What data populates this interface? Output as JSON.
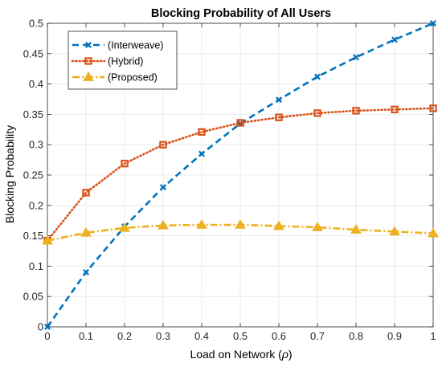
{
  "chart_data": {
    "type": "line",
    "title": "Blocking Probability of All Users",
    "xlabel": "Load on Network (",
    "xlabel_symbol": "ρ",
    "xlabel_close": ")",
    "ylabel": "Blocking Probability",
    "xlim": [
      0,
      1
    ],
    "ylim": [
      0,
      0.5
    ],
    "xticks": [
      0,
      0.1,
      0.2,
      0.3,
      0.4,
      0.5,
      0.6,
      0.7,
      0.8,
      0.9,
      1
    ],
    "xtick_labels": [
      "0",
      "0.1",
      "0.2",
      "0.3",
      "0.4",
      "0.5",
      "0.6",
      "0.7",
      "0.8",
      "0.9",
      "1"
    ],
    "yticks": [
      0,
      0.05,
      0.1,
      0.15,
      0.2,
      0.25,
      0.3,
      0.35,
      0.4,
      0.45,
      0.5
    ],
    "ytick_labels": [
      "0",
      "0.05",
      "0.1",
      "0.15",
      "0.2",
      "0.25",
      "0.3",
      "0.35",
      "0.4",
      "0.45",
      "0.5"
    ],
    "grid": true,
    "legend_position": "top-left",
    "x": [
      0,
      0.1,
      0.2,
      0.3,
      0.4,
      0.5,
      0.6,
      0.7,
      0.8,
      0.9,
      1
    ],
    "series": [
      {
        "name": "(Interweave)",
        "color": "#0072BD",
        "line_style": "dashed",
        "marker": "x",
        "values": [
          0.0,
          0.09,
          0.165,
          0.23,
          0.285,
          0.335,
          0.374,
          0.412,
          0.444,
          0.473,
          0.5
        ]
      },
      {
        "name": "(Hybrid)",
        "color": "#D95319",
        "line_style": "dotted",
        "marker": "square",
        "values": [
          0.142,
          0.221,
          0.269,
          0.3,
          0.321,
          0.336,
          0.345,
          0.352,
          0.356,
          0.358,
          0.36
        ]
      },
      {
        "name": "(Proposed)",
        "color": "#EDB120",
        "line_style": "dash-dot",
        "marker": "triangle",
        "values": [
          0.142,
          0.155,
          0.163,
          0.167,
          0.168,
          0.168,
          0.166,
          0.164,
          0.16,
          0.157,
          0.154
        ]
      }
    ]
  }
}
